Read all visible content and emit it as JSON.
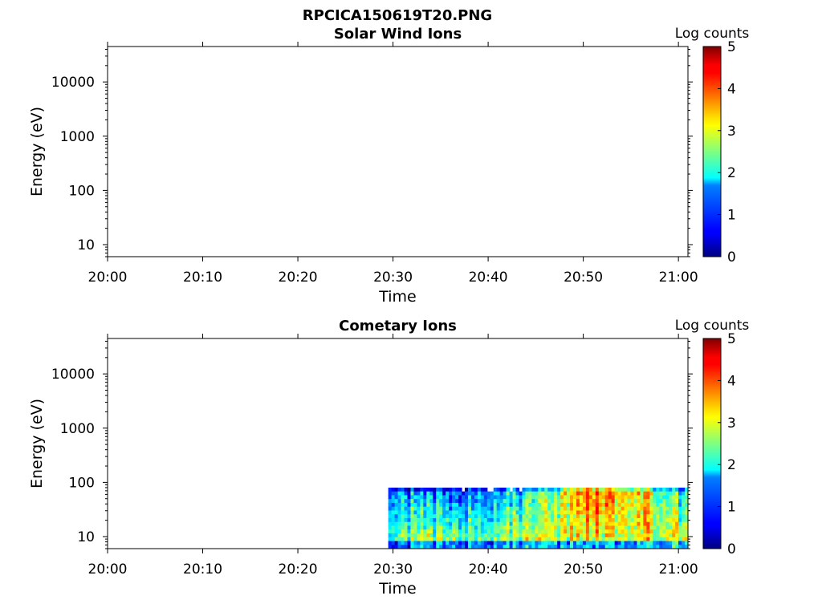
{
  "figure_title": "RPCICA150619T20.PNG",
  "chart_data": [
    {
      "type": "heatmap",
      "title": "Solar Wind Ions",
      "xlabel": "Time",
      "ylabel": "Energy (eV)",
      "yscale": "log",
      "ylim": [
        6,
        45000
      ],
      "xlim": [
        "20:00",
        "21:01"
      ],
      "xticks": [
        "20:00",
        "20:10",
        "20:20",
        "20:30",
        "20:40",
        "20:50",
        "21:00"
      ],
      "yticks": [
        "10",
        "100",
        "1000",
        "10000"
      ],
      "colorbar": {
        "label": "Log counts",
        "range": [
          0,
          5
        ],
        "ticks": [
          "0",
          "1",
          "2",
          "3",
          "4",
          "5"
        ],
        "colormap": "jet"
      },
      "data_present": false
    },
    {
      "type": "heatmap",
      "title": "Cometary Ions",
      "xlabel": "Time",
      "ylabel": "Energy (eV)",
      "yscale": "log",
      "ylim": [
        6,
        45000
      ],
      "xlim": [
        "20:00",
        "21:01"
      ],
      "xticks": [
        "20:00",
        "20:10",
        "20:20",
        "20:30",
        "20:40",
        "20:50",
        "21:00"
      ],
      "yticks": [
        "10",
        "100",
        "1000",
        "10000"
      ],
      "colorbar": {
        "label": "Log counts",
        "range": [
          0,
          5
        ],
        "ticks": [
          "0",
          "1",
          "2",
          "3",
          "4",
          "5"
        ],
        "colormap": "jet"
      },
      "data_present": true,
      "data_time_range": [
        "20:29:30",
        "21:01"
      ],
      "data_energy_range_eV": [
        6,
        80
      ],
      "intensity_summary": [
        {
          "time": "20:30",
          "low_energy_log_counts": 2.6,
          "high_energy_log_counts": 1.6
        },
        {
          "time": "20:35",
          "low_energy_log_counts": 2.8,
          "high_energy_log_counts": 1.0
        },
        {
          "time": "20:40",
          "low_energy_log_counts": 2.7,
          "high_energy_log_counts": 1.3
        },
        {
          "time": "20:45",
          "low_energy_log_counts": 3.0,
          "high_energy_log_counts": 2.0
        },
        {
          "time": "20:51",
          "low_energy_log_counts": 2.8,
          "high_energy_log_counts": 4.0
        },
        {
          "time": "20:55",
          "low_energy_log_counts": 3.0,
          "high_energy_log_counts": 3.5
        },
        {
          "time": "21:00",
          "low_energy_log_counts": 3.2,
          "high_energy_log_counts": 2.0
        }
      ]
    }
  ]
}
